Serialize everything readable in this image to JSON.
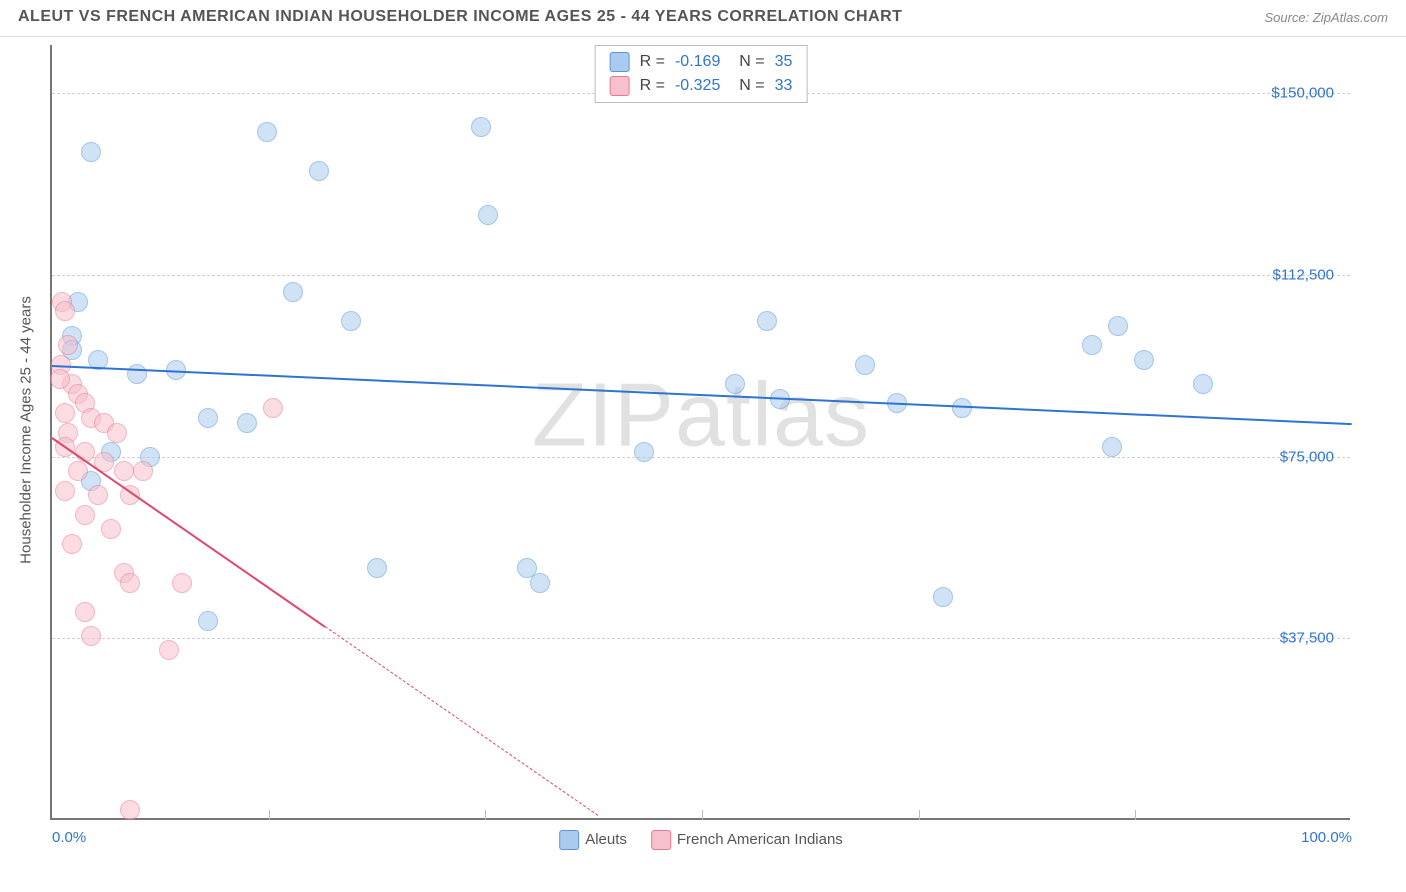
{
  "header": {
    "title": "ALEUT VS FRENCH AMERICAN INDIAN HOUSEHOLDER INCOME AGES 25 - 44 YEARS CORRELATION CHART",
    "source": "Source: ZipAtlas.com"
  },
  "watermark": {
    "bold": "ZIP",
    "light": "atlas"
  },
  "chart": {
    "type": "scatter",
    "yaxis_title": "Householder Income Ages 25 - 44 years",
    "xlim": [
      0,
      100
    ],
    "ylim": [
      0,
      160000
    ],
    "background_color": "#ffffff",
    "grid_color": "#d0d0d0",
    "axis_color": "#777777",
    "tick_label_color": "#2f74d0",
    "tick_fontsize": 15,
    "label_fontsize": 15,
    "marker_radius": 10,
    "marker_opacity": 0.55,
    "xticks": [
      {
        "v": 0,
        "label": "0.0%"
      },
      {
        "v": 16.67,
        "label": ""
      },
      {
        "v": 33.33,
        "label": ""
      },
      {
        "v": 50,
        "label": ""
      },
      {
        "v": 66.67,
        "label": ""
      },
      {
        "v": 83.33,
        "label": ""
      },
      {
        "v": 100,
        "label": "100.0%"
      }
    ],
    "yticks": [
      {
        "v": 37500,
        "label": "$37,500"
      },
      {
        "v": 75000,
        "label": "$75,000"
      },
      {
        "v": 112500,
        "label": "$112,500"
      },
      {
        "v": 150000,
        "label": "$150,000"
      }
    ],
    "series": [
      {
        "name": "Aleuts",
        "fill_color": "#a9cbef",
        "stroke_color": "#5b95d6",
        "line_color": "#2f74d0",
        "r_value": "-0.169",
        "n_value": "35",
        "trend": {
          "x1": 0,
          "y1": 94000,
          "x2": 100,
          "y2": 82000,
          "dash_from_x": 100
        },
        "points": [
          {
            "x": 3,
            "y": 138000
          },
          {
            "x": 16.5,
            "y": 142000
          },
          {
            "x": 20.5,
            "y": 134000
          },
          {
            "x": 33,
            "y": 143000
          },
          {
            "x": 33.5,
            "y": 125000
          },
          {
            "x": 18.5,
            "y": 109000
          },
          {
            "x": 23,
            "y": 103000
          },
          {
            "x": 1.5,
            "y": 100000
          },
          {
            "x": 1.5,
            "y": 97000
          },
          {
            "x": 2,
            "y": 107000
          },
          {
            "x": 3.5,
            "y": 95000
          },
          {
            "x": 6.5,
            "y": 92000
          },
          {
            "x": 9.5,
            "y": 93000
          },
          {
            "x": 12,
            "y": 83000
          },
          {
            "x": 15,
            "y": 82000
          },
          {
            "x": 4.5,
            "y": 76000
          },
          {
            "x": 7.5,
            "y": 75000
          },
          {
            "x": 3,
            "y": 70000
          },
          {
            "x": 12,
            "y": 41000
          },
          {
            "x": 36.5,
            "y": 52000
          },
          {
            "x": 37.5,
            "y": 49000
          },
          {
            "x": 45.5,
            "y": 76000
          },
          {
            "x": 52.5,
            "y": 90000
          },
          {
            "x": 56,
            "y": 87000
          },
          {
            "x": 62.5,
            "y": 94000
          },
          {
            "x": 65,
            "y": 86000
          },
          {
            "x": 70,
            "y": 85000
          },
          {
            "x": 68.5,
            "y": 46000
          },
          {
            "x": 80,
            "y": 98000
          },
          {
            "x": 81.5,
            "y": 77000
          },
          {
            "x": 82,
            "y": 102000
          },
          {
            "x": 84,
            "y": 95000
          },
          {
            "x": 88.5,
            "y": 90000
          },
          {
            "x": 55,
            "y": 103000
          },
          {
            "x": 25,
            "y": 52000
          }
        ]
      },
      {
        "name": "French American Indians",
        "fill_color": "#f6c1cc",
        "stroke_color": "#e77a93",
        "line_color": "#e1476b",
        "r_value": "-0.325",
        "n_value": "33",
        "trend": {
          "x1": 0,
          "y1": 79000,
          "x2": 21,
          "y2": 40000,
          "dash_from_x": 21,
          "dash_to_x": 42
        },
        "points": [
          {
            "x": 0.8,
            "y": 107000
          },
          {
            "x": 1,
            "y": 105000
          },
          {
            "x": 1.2,
            "y": 98000
          },
          {
            "x": 0.7,
            "y": 94000
          },
          {
            "x": 1.5,
            "y": 90000
          },
          {
            "x": 2,
            "y": 88000
          },
          {
            "x": 2.5,
            "y": 86000
          },
          {
            "x": 1,
            "y": 84000
          },
          {
            "x": 3,
            "y": 83000
          },
          {
            "x": 4,
            "y": 82000
          },
          {
            "x": 1.2,
            "y": 80000
          },
          {
            "x": 5,
            "y": 80000
          },
          {
            "x": 1,
            "y": 77000
          },
          {
            "x": 2.5,
            "y": 76000
          },
          {
            "x": 4,
            "y": 74000
          },
          {
            "x": 2,
            "y": 72000
          },
          {
            "x": 5.5,
            "y": 72000
          },
          {
            "x": 7,
            "y": 72000
          },
          {
            "x": 1,
            "y": 68000
          },
          {
            "x": 3.5,
            "y": 67000
          },
          {
            "x": 6,
            "y": 67000
          },
          {
            "x": 2.5,
            "y": 63000
          },
          {
            "x": 1.5,
            "y": 57000
          },
          {
            "x": 5.5,
            "y": 51000
          },
          {
            "x": 6,
            "y": 49000
          },
          {
            "x": 10,
            "y": 49000
          },
          {
            "x": 2.5,
            "y": 43000
          },
          {
            "x": 3,
            "y": 38000
          },
          {
            "x": 9,
            "y": 35000
          },
          {
            "x": 6,
            "y": 2000
          },
          {
            "x": 17,
            "y": 85000
          },
          {
            "x": 0.6,
            "y": 91000
          },
          {
            "x": 4.5,
            "y": 60000
          }
        ]
      }
    ],
    "legend_bottom": [
      {
        "label": "Aleuts",
        "fill": "#a9cbef",
        "stroke": "#5b95d6"
      },
      {
        "label": "French American Indians",
        "fill": "#f6c1cc",
        "stroke": "#e77a93"
      }
    ]
  }
}
